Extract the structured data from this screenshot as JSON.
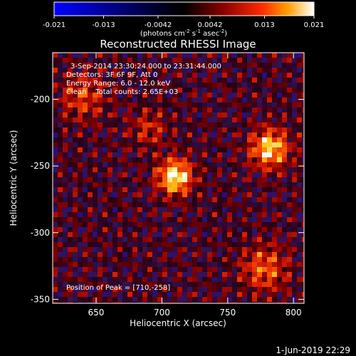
{
  "chart_data": {
    "type": "heatmap",
    "title": "Reconstructed RHESSI Image",
    "xlabel": "Heliocentric X (arcsec)",
    "ylabel": "Heliocentric Y (arcsec)",
    "xlim": [
      617,
      808
    ],
    "ylim": [
      -353,
      -165
    ],
    "x_ticks": [
      650,
      700,
      750,
      800
    ],
    "y_ticks": [
      -200,
      -250,
      -300,
      -350
    ],
    "colorbar": {
      "min": -0.021,
      "max": 0.021,
      "ticks": [
        "-0.021",
        "-0.013",
        "-0.0042",
        "0.0042",
        "0.013",
        "0.021"
      ],
      "label": "(photons cm",
      "label_exp1": "-2",
      "label_mid": " s",
      "label_exp2": "-1",
      "label_end": " asec",
      "label_exp3": "-2",
      "label_close": ")"
    },
    "annotations": {
      "time": "3-Sep-2014 23:30:24.000 to 23:31:44.000",
      "detectors": "Detectors: 3F 6F 9F, Att 0",
      "energy": "Energy Range: 6.0 - 12.0 keV",
      "clean": "Clean    Total counts: 2.65E+03",
      "peak": "Position of Peak = [710,-258]"
    },
    "sources": [
      {
        "x": 710,
        "y": -258,
        "peak": 0.021,
        "sigma": 9
      },
      {
        "x": 782,
        "y": -237,
        "peak": 0.018,
        "sigma": 10
      },
      {
        "x": 778,
        "y": -327,
        "peak": 0.011,
        "sigma": 12
      },
      {
        "x": 640,
        "y": -198,
        "peak": 0.009,
        "sigma": 12
      },
      {
        "x": 690,
        "y": -222,
        "peak": 0.007,
        "sigma": 10
      }
    ]
  },
  "footer": {
    "date": "1-Jun-2019 22:29"
  }
}
